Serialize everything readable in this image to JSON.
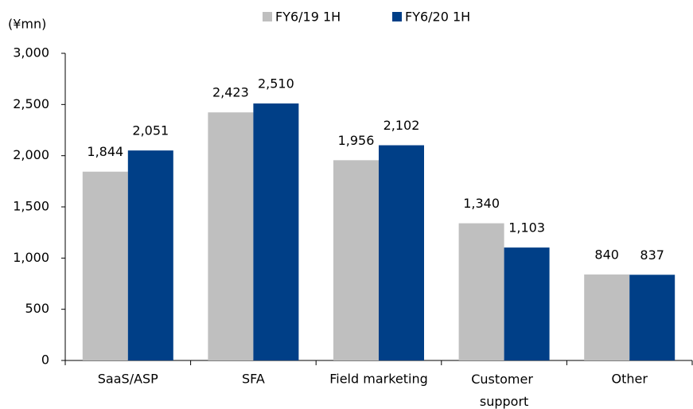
{
  "chart_data": {
    "type": "bar",
    "unit_label": "(¥mn)",
    "categories": [
      "SaaS/ASP",
      "SFA",
      "Field marketing",
      "Customer support",
      "Other"
    ],
    "series": [
      {
        "name": "FY6/19 1H",
        "color": "#bfbfbf",
        "values": [
          1844,
          2423,
          1956,
          1340,
          840
        ],
        "value_labels": [
          "1,844",
          "2,423",
          "1,956",
          "1,340",
          "840"
        ]
      },
      {
        "name": "FY6/20 1H",
        "color": "#003f87",
        "values": [
          2051,
          2510,
          2102,
          1103,
          837
        ],
        "value_labels": [
          "2,051",
          "2,510",
          "2,102",
          "1,103",
          "837"
        ]
      }
    ],
    "ylim": [
      0,
      3000
    ],
    "yticks": [
      0,
      500,
      {
        "value": 1000,
        "label": "1,000"
      },
      {
        "value": 1500,
        "label": "1,500"
      },
      {
        "value": 2000,
        "label": "2,000"
      },
      {
        "value": 2500,
        "label": "2,500"
      },
      {
        "value": 3000,
        "label": "3,000"
      }
    ],
    "grid": false,
    "legend": "top"
  }
}
